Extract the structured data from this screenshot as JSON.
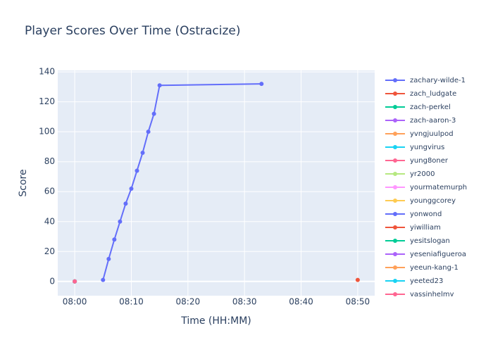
{
  "chart_data": {
    "type": "line",
    "title": "Player Scores Over Time (Ostracize)",
    "x_label": "Time (HH:MM)",
    "y_label": "Score",
    "xlim": [
      "07:57",
      "08:53"
    ],
    "xticks": [
      "08:00",
      "08:10",
      "08:20",
      "08:30",
      "08:40",
      "08:50"
    ],
    "ylim": [
      -9.5,
      141
    ],
    "yticks": [
      0,
      20,
      40,
      60,
      80,
      100,
      120,
      140
    ],
    "grid": true,
    "series": [
      {
        "name": "zachary-wilde-1",
        "color": "#636efa",
        "x": [
          "08:05",
          "08:06",
          "08:07",
          "08:08",
          "08:09",
          "08:10",
          "08:11",
          "08:12",
          "08:13",
          "08:14",
          "08:15",
          "08:33"
        ],
        "values": [
          1,
          15,
          28,
          40,
          52,
          62,
          74,
          86,
          100,
          112,
          131,
          132
        ]
      },
      {
        "name": "zach_ludgate",
        "color": "#EF553B",
        "x": [
          "08:50"
        ],
        "values": [
          1
        ]
      },
      {
        "name": "zach-perkel",
        "color": "#00cc96",
        "x": [
          "08:00"
        ],
        "values": [
          0
        ]
      },
      {
        "name": "zach-aaron-3",
        "color": "#ab63fa",
        "x": [
          "08:00"
        ],
        "values": [
          0
        ]
      },
      {
        "name": "yvngjuulpod",
        "color": "#FFA15A",
        "x": [
          "08:00"
        ],
        "values": [
          0
        ]
      },
      {
        "name": "yungvirus",
        "color": "#19d3f3",
        "x": [
          "08:00"
        ],
        "values": [
          0
        ]
      },
      {
        "name": "yung8oner",
        "color": "#FF6692",
        "x": [
          "08:00"
        ],
        "values": [
          0
        ]
      },
      {
        "name": "yr2000",
        "color": "#B6E880",
        "x": [
          "08:00"
        ],
        "values": [
          0
        ]
      },
      {
        "name": "yourmatemurph",
        "color": "#FF97FF",
        "x": [
          "08:00"
        ],
        "values": [
          0
        ]
      },
      {
        "name": "younggcorey",
        "color": "#FECB52",
        "x": [
          "08:00"
        ],
        "values": [
          0
        ]
      },
      {
        "name": "yonwond",
        "color": "#636efa",
        "x": [
          "08:00"
        ],
        "values": [
          0
        ]
      },
      {
        "name": "yiwilliam",
        "color": "#EF553B",
        "x": [
          "08:00"
        ],
        "values": [
          0
        ]
      },
      {
        "name": "yesitslogan",
        "color": "#00cc96",
        "x": [
          "08:00"
        ],
        "values": [
          0
        ]
      },
      {
        "name": "yeseniafigueroa",
        "color": "#ab63fa",
        "x": [
          "08:00"
        ],
        "values": [
          0
        ]
      },
      {
        "name": "yeeun-kang-1",
        "color": "#FFA15A",
        "x": [
          "08:00"
        ],
        "values": [
          0
        ]
      },
      {
        "name": "yeeted23",
        "color": "#19d3f3",
        "x": [
          "08:00"
        ],
        "values": [
          0
        ]
      },
      {
        "name": "yassinhelmy",
        "color": "#FF6692",
        "x": [
          "08:00"
        ],
        "values": [
          0
        ]
      }
    ]
  }
}
